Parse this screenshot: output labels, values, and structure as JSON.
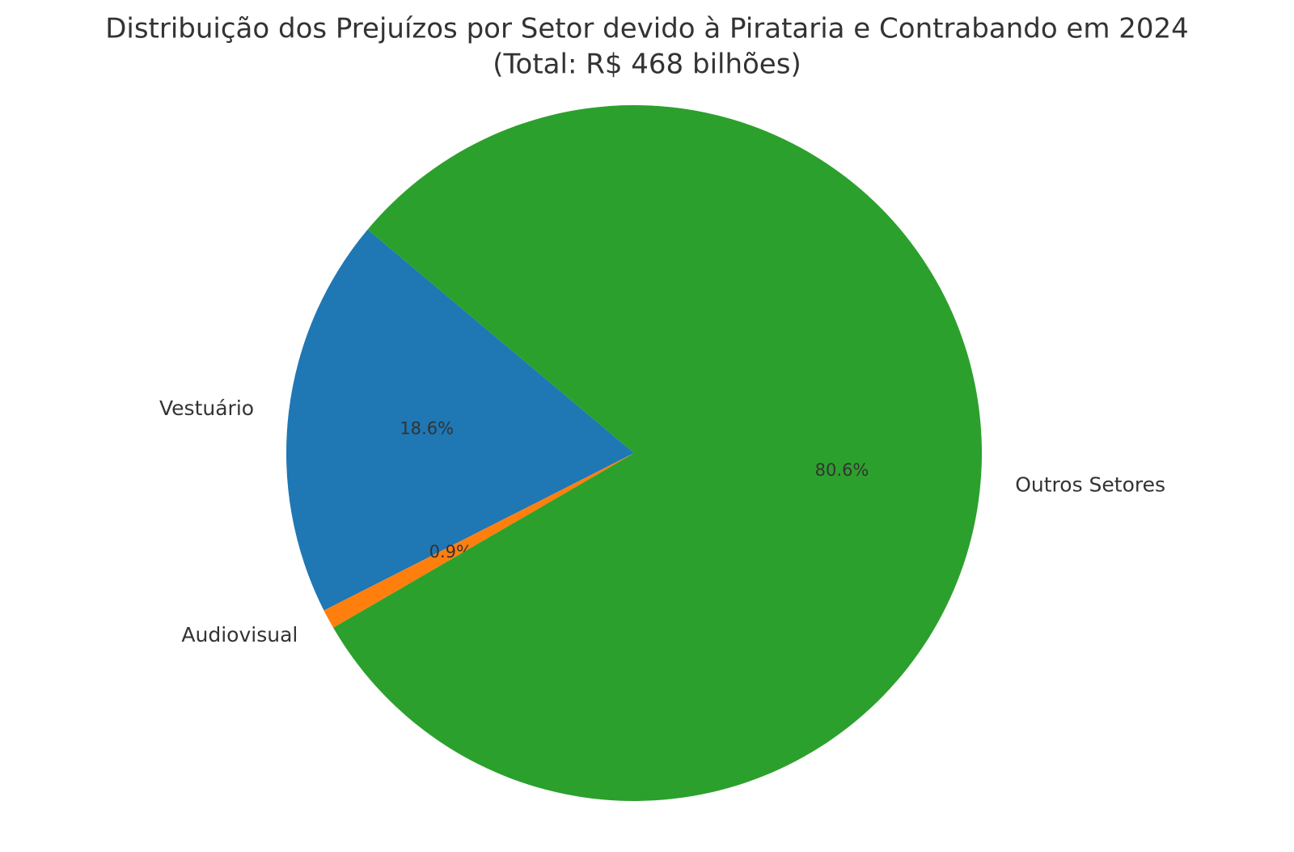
{
  "chart_data": {
    "type": "pie",
    "title": "Distribuição dos Prejuízos por Setor devido à Pirataria e Contrabando em 2024",
    "subtitle": "(Total: R$ 468 bilhões)",
    "categories": [
      "Vestuário",
      "Audiovisual",
      "Outros Setores"
    ],
    "values": [
      18.6,
      0.9,
      80.6
    ],
    "value_labels": [
      "18.6%",
      "0.9%",
      "80.6%"
    ],
    "colors": [
      "#1f77b4",
      "#ff7f0e",
      "#2ca02c"
    ],
    "start_angle": 140
  }
}
